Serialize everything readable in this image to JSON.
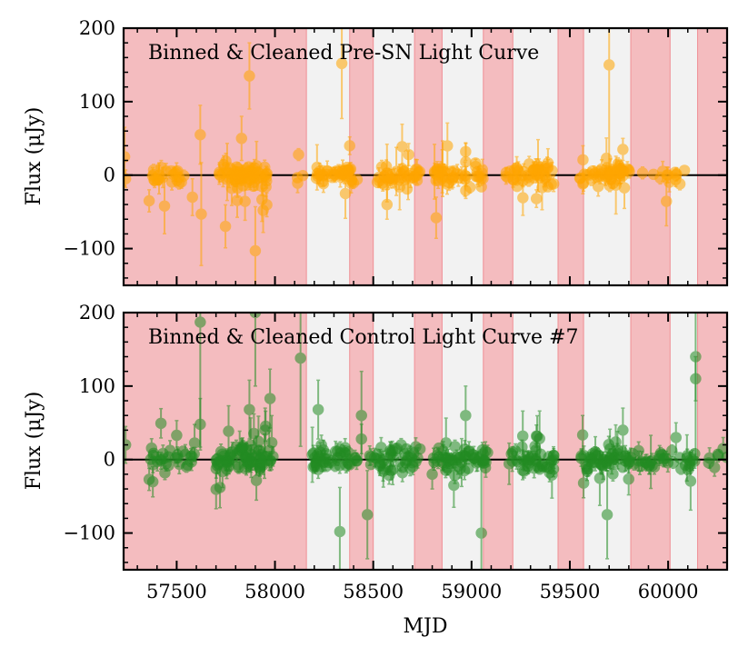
{
  "figure": {
    "xlabel": "MJD",
    "colors": {
      "bad_band": "#f4bcbf",
      "good_band": "#f2f2f2",
      "zero_line": "#000000",
      "sn_points": "#ffa500",
      "control_points": "#228b22"
    }
  },
  "chart_data": [
    {
      "type": "scatter",
      "title": "Binned & Cleaned Pre-SN Light Curve",
      "xlabel": "MJD",
      "ylabel": "Flux (μJy)",
      "xlim": [
        57230,
        60300
      ],
      "ylim": [
        -150,
        200
      ],
      "xticks": [
        57500,
        58000,
        58500,
        59000,
        59500,
        60000
      ],
      "yticks": [
        -100,
        0,
        100,
        200
      ],
      "marker_color": "#ffa500",
      "seed": 11,
      "spread": 7,
      "outlier_rate": 0.1,
      "bad_regions": [
        [
          57230,
          58160
        ],
        [
          58380,
          58500
        ],
        [
          58710,
          58850
        ],
        [
          59060,
          59210
        ],
        [
          59440,
          59570
        ],
        [
          59810,
          60010
        ],
        [
          60150,
          60300
        ]
      ],
      "seasons": [
        {
          "start": 57360,
          "end": 57540,
          "n": 24
        },
        {
          "start": 57700,
          "end": 57960,
          "n": 70
        },
        {
          "start": 58110,
          "end": 58160,
          "n": 3
        },
        {
          "start": 58200,
          "end": 58420,
          "n": 40
        },
        {
          "start": 58520,
          "end": 58740,
          "n": 40
        },
        {
          "start": 58800,
          "end": 59060,
          "n": 45
        },
        {
          "start": 59170,
          "end": 59420,
          "n": 45
        },
        {
          "start": 59550,
          "end": 59810,
          "n": 50
        },
        {
          "start": 59900,
          "end": 60090,
          "n": 10
        }
      ],
      "notable_points": [
        {
          "x": 57235,
          "y": 25,
          "err": 40
        },
        {
          "x": 57240,
          "y": -5,
          "err": 12
        },
        {
          "x": 57360,
          "y": -35,
          "err": 15
        },
        {
          "x": 57580,
          "y": -30,
          "err": 25
        },
        {
          "x": 57620,
          "y": 55,
          "err": 40
        },
        {
          "x": 57625,
          "y": -53,
          "err": 70
        },
        {
          "x": 57870,
          "y": 135,
          "err": 45
        },
        {
          "x": 57830,
          "y": 50,
          "err": 30
        },
        {
          "x": 57900,
          "y": -103,
          "err": 60
        },
        {
          "x": 57940,
          "y": -48,
          "err": 30
        },
        {
          "x": 58120,
          "y": 28,
          "err": 8
        },
        {
          "x": 58340,
          "y": 152,
          "err": 75
        },
        {
          "x": 58380,
          "y": 40,
          "err": 12
        },
        {
          "x": 58570,
          "y": -40,
          "err": 20
        },
        {
          "x": 58680,
          "y": 28,
          "err": 15
        },
        {
          "x": 58820,
          "y": -58,
          "err": 28
        },
        {
          "x": 58970,
          "y": 32,
          "err": 12
        },
        {
          "x": 59230,
          "y": 10,
          "err": 15
        },
        {
          "x": 59330,
          "y": -32,
          "err": 12
        },
        {
          "x": 59700,
          "y": 150,
          "err": 150
        },
        {
          "x": 59770,
          "y": 35,
          "err": 15
        },
        {
          "x": 59870,
          "y": 3,
          "err": 8
        },
        {
          "x": 59960,
          "y": -4,
          "err": 8
        },
        {
          "x": 60040,
          "y": 0,
          "err": 8
        },
        {
          "x": 60060,
          "y": -12,
          "err": 8
        }
      ]
    },
    {
      "type": "scatter",
      "title": "Binned & Cleaned Control Light Curve #7",
      "xlabel": "MJD",
      "ylabel": "Flux (μJy)",
      "xlim": [
        57230,
        60300
      ],
      "ylim": [
        -150,
        200
      ],
      "xticks": [
        57500,
        58000,
        58500,
        59000,
        59500,
        60000
      ],
      "yticks": [
        -100,
        0,
        100,
        200
      ],
      "marker_color": "#228b22",
      "seed": 29,
      "spread": 8,
      "outlier_rate": 0.12,
      "bad_regions": [
        [
          57230,
          58160
        ],
        [
          58380,
          58500
        ],
        [
          58710,
          58850
        ],
        [
          59060,
          59210
        ],
        [
          59440,
          59570
        ],
        [
          59810,
          60010
        ],
        [
          60150,
          60300
        ]
      ],
      "seasons": [
        {
          "start": 57360,
          "end": 57600,
          "n": 30
        },
        {
          "start": 57700,
          "end": 57990,
          "n": 80
        },
        {
          "start": 58190,
          "end": 58420,
          "n": 45
        },
        {
          "start": 58480,
          "end": 58740,
          "n": 45
        },
        {
          "start": 58800,
          "end": 59090,
          "n": 55
        },
        {
          "start": 59170,
          "end": 59420,
          "n": 45
        },
        {
          "start": 59550,
          "end": 59830,
          "n": 55
        },
        {
          "start": 59850,
          "end": 60160,
          "n": 35
        },
        {
          "start": 60200,
          "end": 60300,
          "n": 6
        }
      ],
      "notable_points": [
        {
          "x": 57240,
          "y": 20,
          "err": 25
        },
        {
          "x": 57360,
          "y": -27,
          "err": 15
        },
        {
          "x": 57500,
          "y": 33,
          "err": 20
        },
        {
          "x": 57620,
          "y": 187,
          "err": 170
        },
        {
          "x": 57620,
          "y": 48,
          "err": 35
        },
        {
          "x": 57870,
          "y": 68,
          "err": 40
        },
        {
          "x": 57900,
          "y": 200,
          "err": 100
        },
        {
          "x": 57950,
          "y": 40,
          "err": 30
        },
        {
          "x": 57975,
          "y": 83,
          "err": 40
        },
        {
          "x": 58130,
          "y": 138,
          "err": 120
        },
        {
          "x": 58220,
          "y": 68,
          "err": 40
        },
        {
          "x": 58330,
          "y": -98,
          "err": 60
        },
        {
          "x": 58440,
          "y": 60,
          "err": 60
        },
        {
          "x": 58440,
          "y": 28,
          "err": 20
        },
        {
          "x": 58470,
          "y": -75,
          "err": 60
        },
        {
          "x": 58800,
          "y": -20,
          "err": 20
        },
        {
          "x": 58910,
          "y": -35,
          "err": 30
        },
        {
          "x": 58970,
          "y": 60,
          "err": 40
        },
        {
          "x": 59050,
          "y": -100,
          "err": 100
        },
        {
          "x": 59330,
          "y": 32,
          "err": 15
        },
        {
          "x": 59570,
          "y": -32,
          "err": 20
        },
        {
          "x": 59690,
          "y": -75,
          "err": 60
        },
        {
          "x": 59770,
          "y": 40,
          "err": 30
        },
        {
          "x": 59850,
          "y": 12,
          "err": 12
        },
        {
          "x": 60040,
          "y": 30,
          "err": 20
        },
        {
          "x": 60140,
          "y": 140,
          "err": 140
        },
        {
          "x": 60140,
          "y": 110,
          "err": 30
        },
        {
          "x": 60280,
          "y": 15,
          "err": 15
        }
      ]
    }
  ]
}
